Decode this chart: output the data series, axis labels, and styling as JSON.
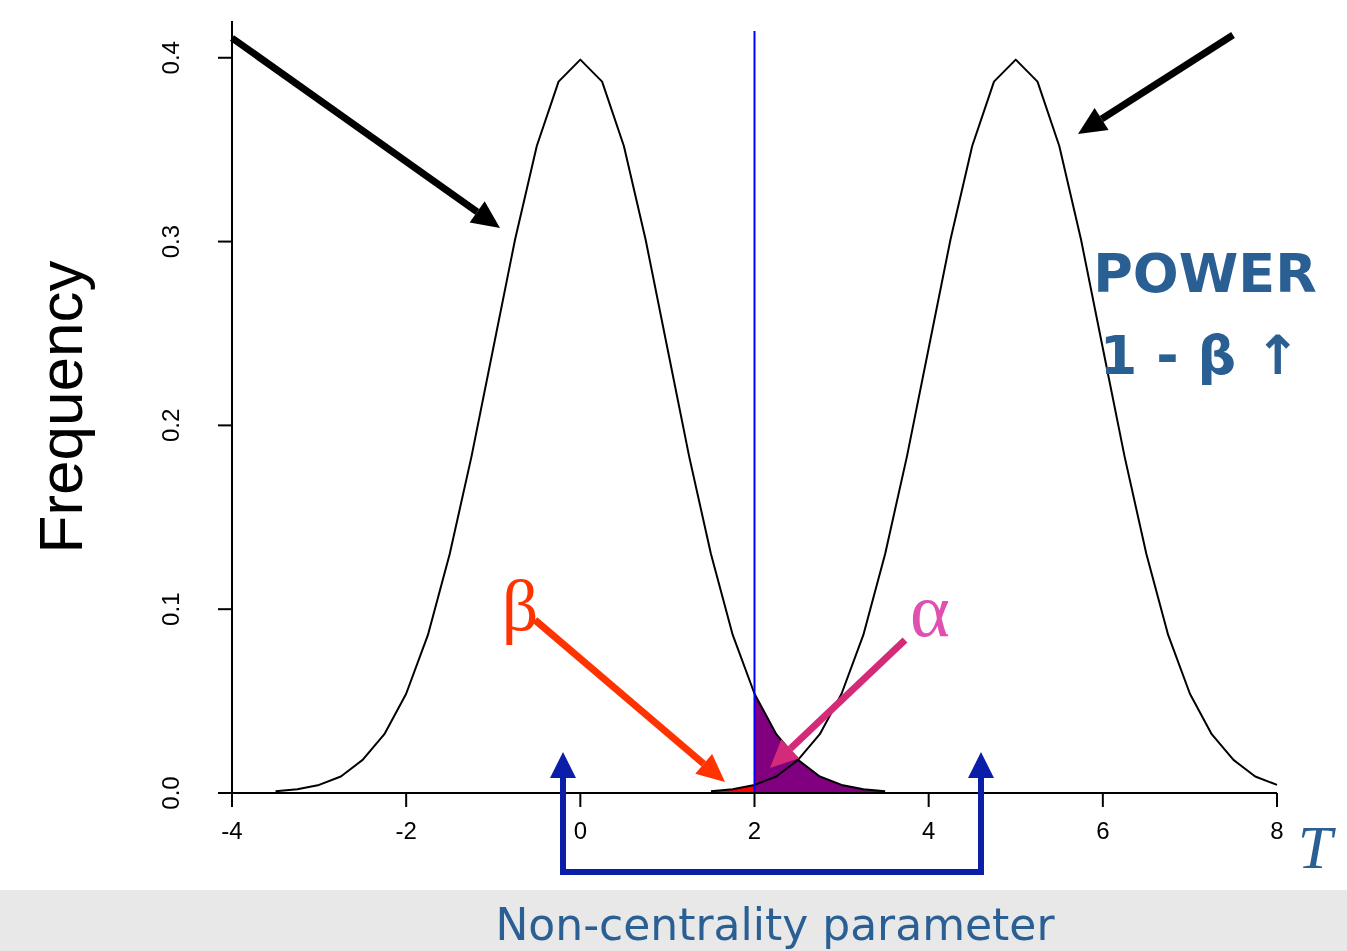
{
  "chart_data": {
    "type": "line",
    "ylabel": "Frequency",
    "xlabel": "T",
    "xlim": [
      -4,
      8
    ],
    "ylim": [
      0,
      0.42
    ],
    "xticks": [
      -4,
      -2,
      0,
      2,
      4,
      6,
      8
    ],
    "yticks": [
      {
        "value": 0,
        "label": "0.0"
      },
      0.1,
      0.2,
      0.3,
      0.4
    ],
    "marker": "none",
    "grid": false,
    "series": [
      {
        "type": "area",
        "color": "#800080",
        "x": [
          2,
          2.25,
          2.5,
          2.75,
          3,
          3.25,
          3.5
        ],
        "values": [
          0.054,
          0.032,
          0.018,
          0.009,
          0.0044,
          0.002,
          0.0009
        ]
      },
      {
        "type": "area",
        "color": "#ff0000",
        "x": [
          1.5,
          1.75,
          2
        ],
        "values": [
          0.0009,
          0.002,
          0.0044
        ]
      },
      {
        "type": "line",
        "color": "#000000",
        "x": [
          -3.5,
          -3.25,
          -3,
          -2.75,
          -2.5,
          -2.25,
          -2,
          -1.75,
          -1.5,
          -1.25,
          -1,
          -0.75,
          -0.5,
          -0.25,
          0,
          0.25,
          0.5,
          0.75,
          1,
          1.25,
          1.5,
          1.75,
          2,
          2.25,
          2.5,
          2.75,
          3,
          3.25,
          3.5
        ],
        "values": [
          0.0009,
          0.002,
          0.0044,
          0.009,
          0.018,
          0.032,
          0.054,
          0.086,
          0.13,
          0.183,
          0.242,
          0.301,
          0.352,
          0.387,
          0.399,
          0.387,
          0.352,
          0.301,
          0.242,
          0.183,
          0.13,
          0.086,
          0.054,
          0.032,
          0.018,
          0.009,
          0.0044,
          0.002,
          0.0009
        ]
      },
      {
        "type": "line",
        "color": "#000000",
        "x": [
          1.5,
          1.75,
          2,
          2.25,
          2.5,
          2.75,
          3,
          3.25,
          3.5,
          3.75,
          4,
          4.25,
          4.5,
          4.75,
          5,
          5.25,
          5.5,
          5.75,
          6,
          6.25,
          6.5,
          6.75,
          7,
          7.25,
          7.5,
          7.75,
          8
        ],
        "values": [
          0.0009,
          0.002,
          0.0044,
          0.009,
          0.018,
          0.032,
          0.054,
          0.086,
          0.13,
          0.183,
          0.242,
          0.301,
          0.352,
          0.387,
          0.399,
          0.387,
          0.352,
          0.301,
          0.242,
          0.183,
          0.13,
          0.086,
          0.054,
          0.032,
          0.018,
          0.009,
          0.0044
        ]
      }
    ],
    "ref_lines": [
      {
        "axis": "x",
        "value": 2,
        "color": "#0000ff"
      }
    ],
    "annotations": [
      "β",
      "α",
      "POWER",
      "1 - β ↑",
      "Non-centrality parameter"
    ]
  }
}
